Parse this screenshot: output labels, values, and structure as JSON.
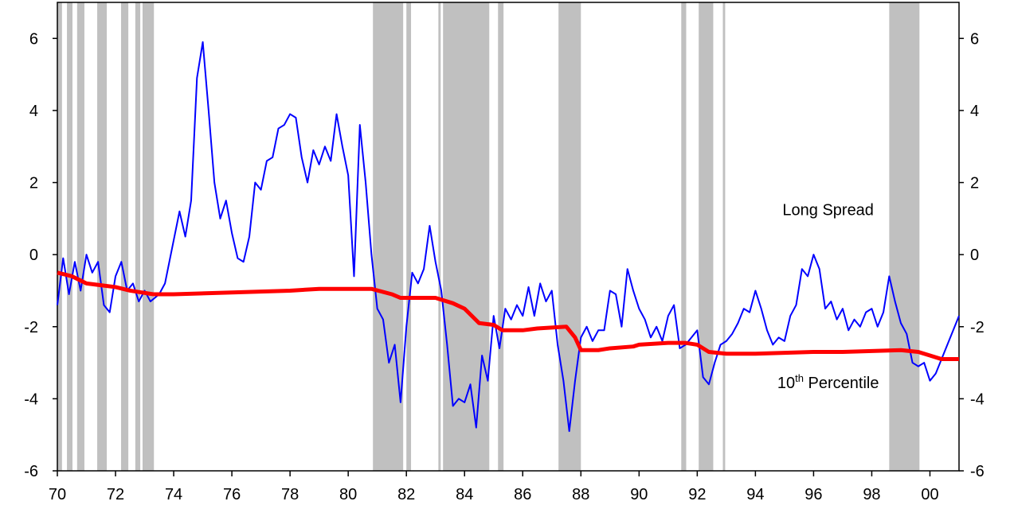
{
  "chart_data": {
    "type": "line",
    "xlim": [
      70,
      101
    ],
    "ylim": [
      -6,
      7
    ],
    "xticks": [
      70,
      72,
      74,
      76,
      78,
      80,
      82,
      84,
      86,
      88,
      90,
      92,
      94,
      96,
      98,
      {
        "value": 100,
        "label": "00"
      }
    ],
    "yticks": [
      -6,
      -4,
      -2,
      0,
      2,
      4,
      6
    ],
    "shade_color": "#c0c0c0",
    "shaded_periods": [
      [
        70.0,
        70.16
      ],
      [
        70.33,
        70.52
      ],
      [
        70.68,
        70.93
      ],
      [
        71.37,
        71.7
      ],
      [
        72.19,
        72.44
      ],
      [
        72.68,
        72.85
      ],
      [
        72.93,
        73.32
      ],
      [
        80.85,
        81.89
      ],
      [
        82.0,
        82.16
      ],
      [
        83.1,
        83.18
      ],
      [
        83.26,
        84.85
      ],
      [
        85.15,
        85.34
      ],
      [
        87.23,
        88.0
      ],
      [
        91.45,
        91.62
      ],
      [
        92.05,
        92.55
      ],
      [
        92.88,
        92.96
      ],
      [
        98.6,
        99.64
      ]
    ],
    "series": [
      {
        "name": "Long Spread",
        "color": "#0000ff",
        "width": 2,
        "x": [
          70.0,
          70.2,
          70.4,
          70.6,
          70.8,
          71.0,
          71.2,
          71.4,
          71.6,
          71.8,
          72.0,
          72.2,
          72.4,
          72.6,
          72.8,
          73.0,
          73.2,
          73.5,
          73.7,
          74.0,
          74.2,
          74.4,
          74.6,
          74.8,
          75.0,
          75.2,
          75.4,
          75.6,
          75.8,
          76.0,
          76.2,
          76.4,
          76.6,
          76.8,
          77.0,
          77.2,
          77.4,
          77.6,
          77.8,
          78.0,
          78.2,
          78.4,
          78.6,
          78.8,
          79.0,
          79.2,
          79.4,
          79.6,
          79.8,
          80.0,
          80.2,
          80.4,
          80.6,
          80.8,
          81.0,
          81.2,
          81.4,
          81.6,
          81.8,
          82.0,
          82.2,
          82.4,
          82.6,
          82.8,
          83.0,
          83.2,
          83.4,
          83.6,
          83.8,
          84.0,
          84.2,
          84.4,
          84.6,
          84.8,
          85.0,
          85.2,
          85.4,
          85.6,
          85.8,
          86.0,
          86.2,
          86.4,
          86.6,
          86.8,
          87.0,
          87.2,
          87.4,
          87.6,
          87.8,
          88.0,
          88.2,
          88.4,
          88.6,
          88.8,
          89.0,
          89.2,
          89.4,
          89.6,
          89.8,
          90.0,
          90.2,
          90.4,
          90.6,
          90.8,
          91.0,
          91.2,
          91.4,
          91.6,
          91.8,
          92.0,
          92.2,
          92.4,
          92.6,
          92.8,
          93.0,
          93.2,
          93.4,
          93.6,
          93.8,
          94.0,
          94.2,
          94.4,
          94.6,
          94.8,
          95.0,
          95.2,
          95.4,
          95.6,
          95.8,
          96.0,
          96.2,
          96.4,
          96.6,
          96.8,
          97.0,
          97.2,
          97.4,
          97.6,
          97.8,
          98.0,
          98.2,
          98.4,
          98.6,
          98.8,
          99.0,
          99.2,
          99.4,
          99.6,
          99.8,
          100.0,
          100.2,
          100.4,
          100.6,
          100.8,
          101.0
        ],
        "values": [
          -1.4,
          -0.1,
          -1.1,
          -0.2,
          -1.0,
          0.0,
          -0.5,
          -0.2,
          -1.4,
          -1.6,
          -0.6,
          -0.2,
          -1.0,
          -0.8,
          -1.3,
          -1.0,
          -1.3,
          -1.1,
          -0.8,
          0.4,
          1.2,
          0.5,
          1.5,
          4.9,
          5.9,
          4.0,
          2.0,
          1.0,
          1.5,
          0.6,
          -0.1,
          -0.2,
          0.5,
          2.0,
          1.8,
          2.6,
          2.7,
          3.5,
          3.6,
          3.9,
          3.8,
          2.7,
          2.0,
          2.9,
          2.5,
          3.0,
          2.6,
          3.9,
          3.0,
          2.2,
          -0.6,
          3.6,
          2.0,
          0.0,
          -1.5,
          -1.8,
          -3.0,
          -2.5,
          -4.1,
          -2.0,
          -0.5,
          -0.8,
          -0.4,
          0.8,
          -0.2,
          -1.0,
          -2.5,
          -4.2,
          -4.0,
          -4.1,
          -3.6,
          -4.8,
          -2.8,
          -3.5,
          -1.7,
          -2.6,
          -1.5,
          -1.8,
          -1.4,
          -1.7,
          -0.9,
          -1.7,
          -0.8,
          -1.3,
          -1.0,
          -2.5,
          -3.5,
          -4.9,
          -3.5,
          -2.3,
          -2.0,
          -2.4,
          -2.1,
          -2.1,
          -1.0,
          -1.1,
          -2.0,
          -0.4,
          -1.0,
          -1.5,
          -1.8,
          -2.3,
          -2.0,
          -2.4,
          -1.7,
          -1.4,
          -2.6,
          -2.5,
          -2.3,
          -2.1,
          -3.4,
          -3.6,
          -3.0,
          -2.5,
          -2.4,
          -2.2,
          -1.9,
          -1.5,
          -1.6,
          -1.0,
          -1.5,
          -2.1,
          -2.5,
          -2.3,
          -2.4,
          -1.7,
          -1.4,
          -0.4,
          -0.6,
          0.0,
          -0.4,
          -1.5,
          -1.3,
          -1.8,
          -1.5,
          -2.1,
          -1.8,
          -2.0,
          -1.6,
          -1.5,
          -2.0,
          -1.6,
          -0.6,
          -1.3,
          -1.9,
          -2.2,
          -3.0,
          -3.1,
          -3.0,
          -3.5,
          -3.3,
          -2.9,
          -2.5,
          -2.1,
          -1.7
        ]
      },
      {
        "name": "10th Percentile",
        "color": "#ff0000",
        "width": 5,
        "x": [
          70,
          70.5,
          71,
          72,
          72.5,
          73.3,
          74,
          76,
          78,
          79,
          80.8,
          81.5,
          81.8,
          83,
          83.6,
          84,
          84.5,
          85,
          85.3,
          86,
          86.5,
          87.5,
          87.8,
          88,
          88.6,
          89,
          89.8,
          90,
          91,
          91.6,
          92,
          92.4,
          93,
          94,
          96,
          97,
          99,
          99.6,
          100,
          100.4,
          101
        ],
        "values": [
          -0.5,
          -0.6,
          -0.8,
          -0.9,
          -1.0,
          -1.1,
          -1.1,
          -1.05,
          -1.0,
          -0.95,
          -0.95,
          -1.1,
          -1.2,
          -1.2,
          -1.35,
          -1.5,
          -1.9,
          -1.95,
          -2.1,
          -2.1,
          -2.05,
          -2.0,
          -2.3,
          -2.65,
          -2.65,
          -2.6,
          -2.55,
          -2.5,
          -2.45,
          -2.45,
          -2.5,
          -2.7,
          -2.75,
          -2.75,
          -2.7,
          -2.7,
          -2.65,
          -2.7,
          -2.8,
          -2.9,
          -2.9
        ]
      }
    ],
    "annotations": [
      {
        "parts": [
          "Long Spread"
        ],
        "x": 96.5,
        "y": 1.1
      },
      {
        "parts": [
          "10",
          "th",
          " Percentile"
        ],
        "x": 96.5,
        "y": -3.7
      }
    ]
  }
}
